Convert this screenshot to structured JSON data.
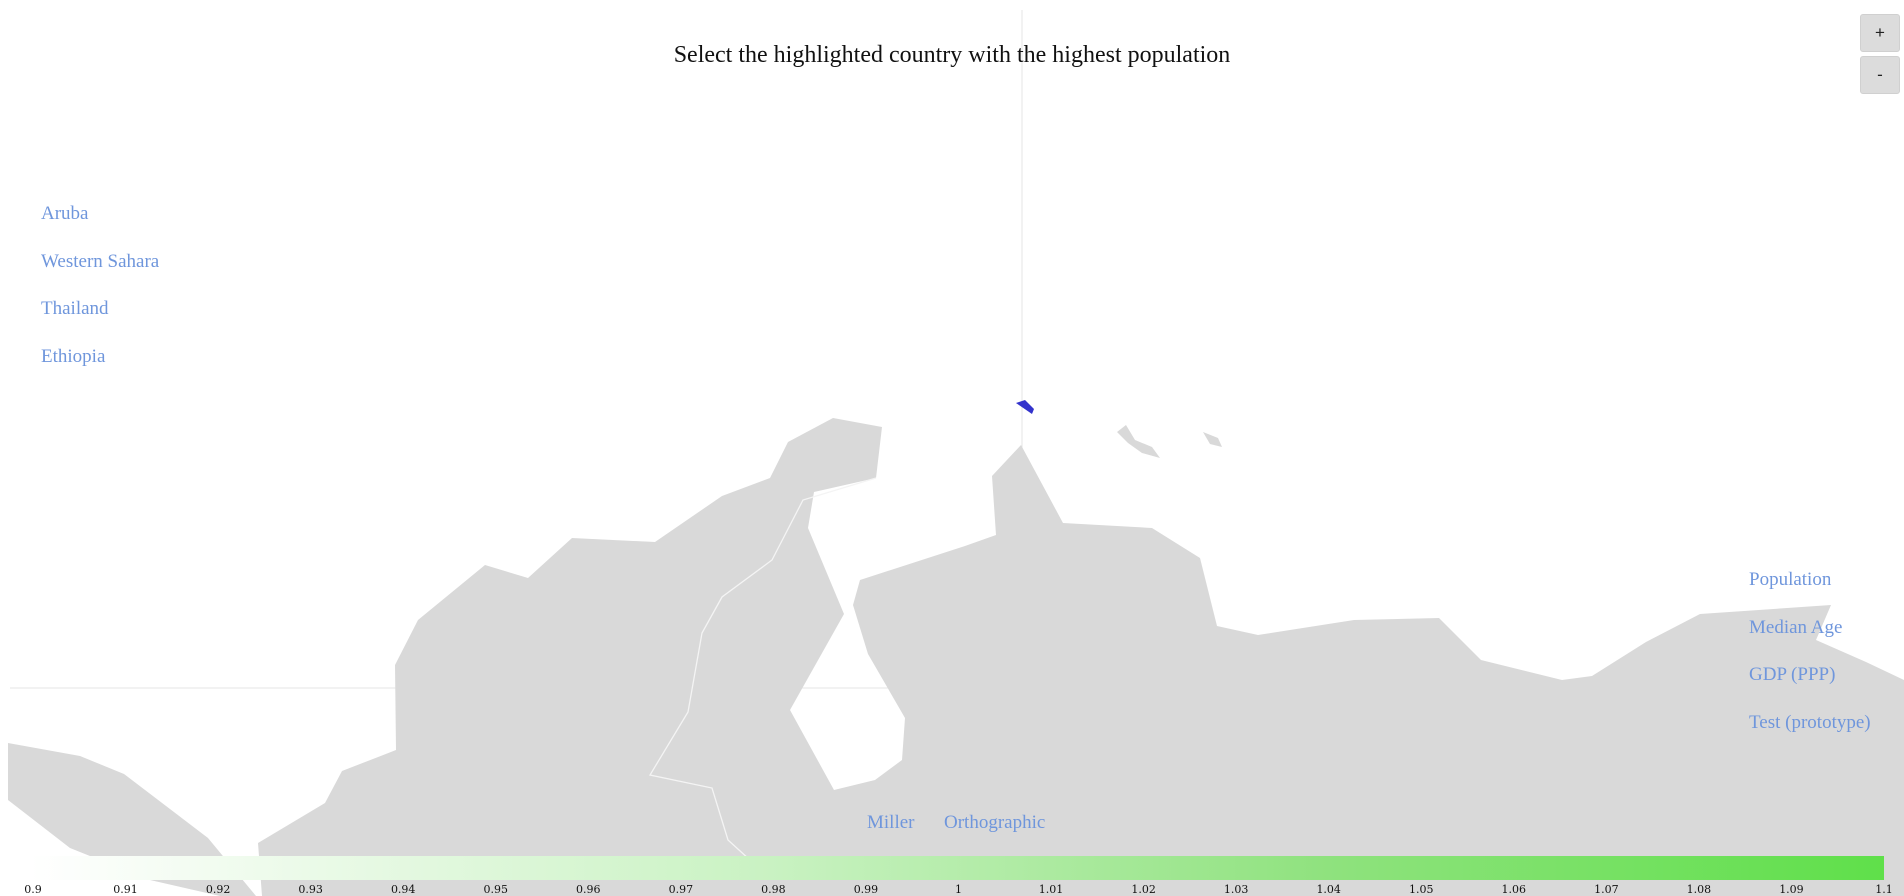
{
  "title": "Select the highlighted country with the highest population",
  "zoom": {
    "in_label": "+",
    "out_label": "-"
  },
  "countries": [
    "Aruba",
    "Western Sahara",
    "Thailand",
    "Ethiopia"
  ],
  "metrics": [
    "Population",
    "Median Age",
    "GDP (PPP)",
    "Test (prototype)"
  ],
  "projections": {
    "miller": "Miller",
    "orthographic": "Orthographic"
  },
  "legend": {
    "ticks": [
      "0.9",
      "0.91",
      "0.92",
      "0.93",
      "0.94",
      "0.95",
      "0.96",
      "0.97",
      "0.98",
      "0.99",
      "1",
      "1.01",
      "1.02",
      "1.03",
      "1.04",
      "1.05",
      "1.06",
      "1.07",
      "1.08",
      "1.09",
      "1.1"
    ]
  },
  "colors": {
    "land": "#d9d9d9",
    "border": "#f2f2f2",
    "highlight": "#3333cc",
    "link": "#6f96dc",
    "legend_low": "#ffffff",
    "legend_high": "#5fe04a"
  }
}
